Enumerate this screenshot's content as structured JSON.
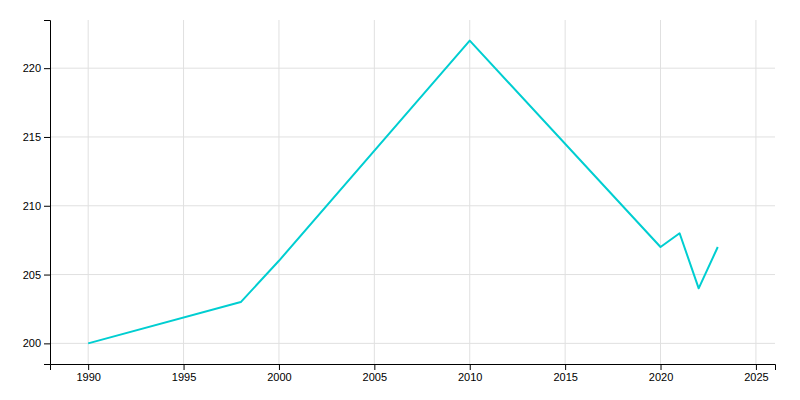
{
  "chart_data": {
    "type": "line",
    "x": [
      1990,
      1998,
      2000,
      2010,
      2020,
      2021,
      2022,
      2023
    ],
    "values": [
      200,
      203,
      206,
      222,
      207,
      208,
      204,
      207
    ],
    "color": "#00CED1",
    "xlim": [
      1988,
      2026
    ],
    "ylim": [
      198.5,
      223.5
    ],
    "xticks": [
      1990,
      1995,
      2000,
      2005,
      2010,
      2015,
      2020,
      2025
    ],
    "yticks": [
      200,
      205,
      210,
      215,
      220
    ],
    "grid": true
  }
}
